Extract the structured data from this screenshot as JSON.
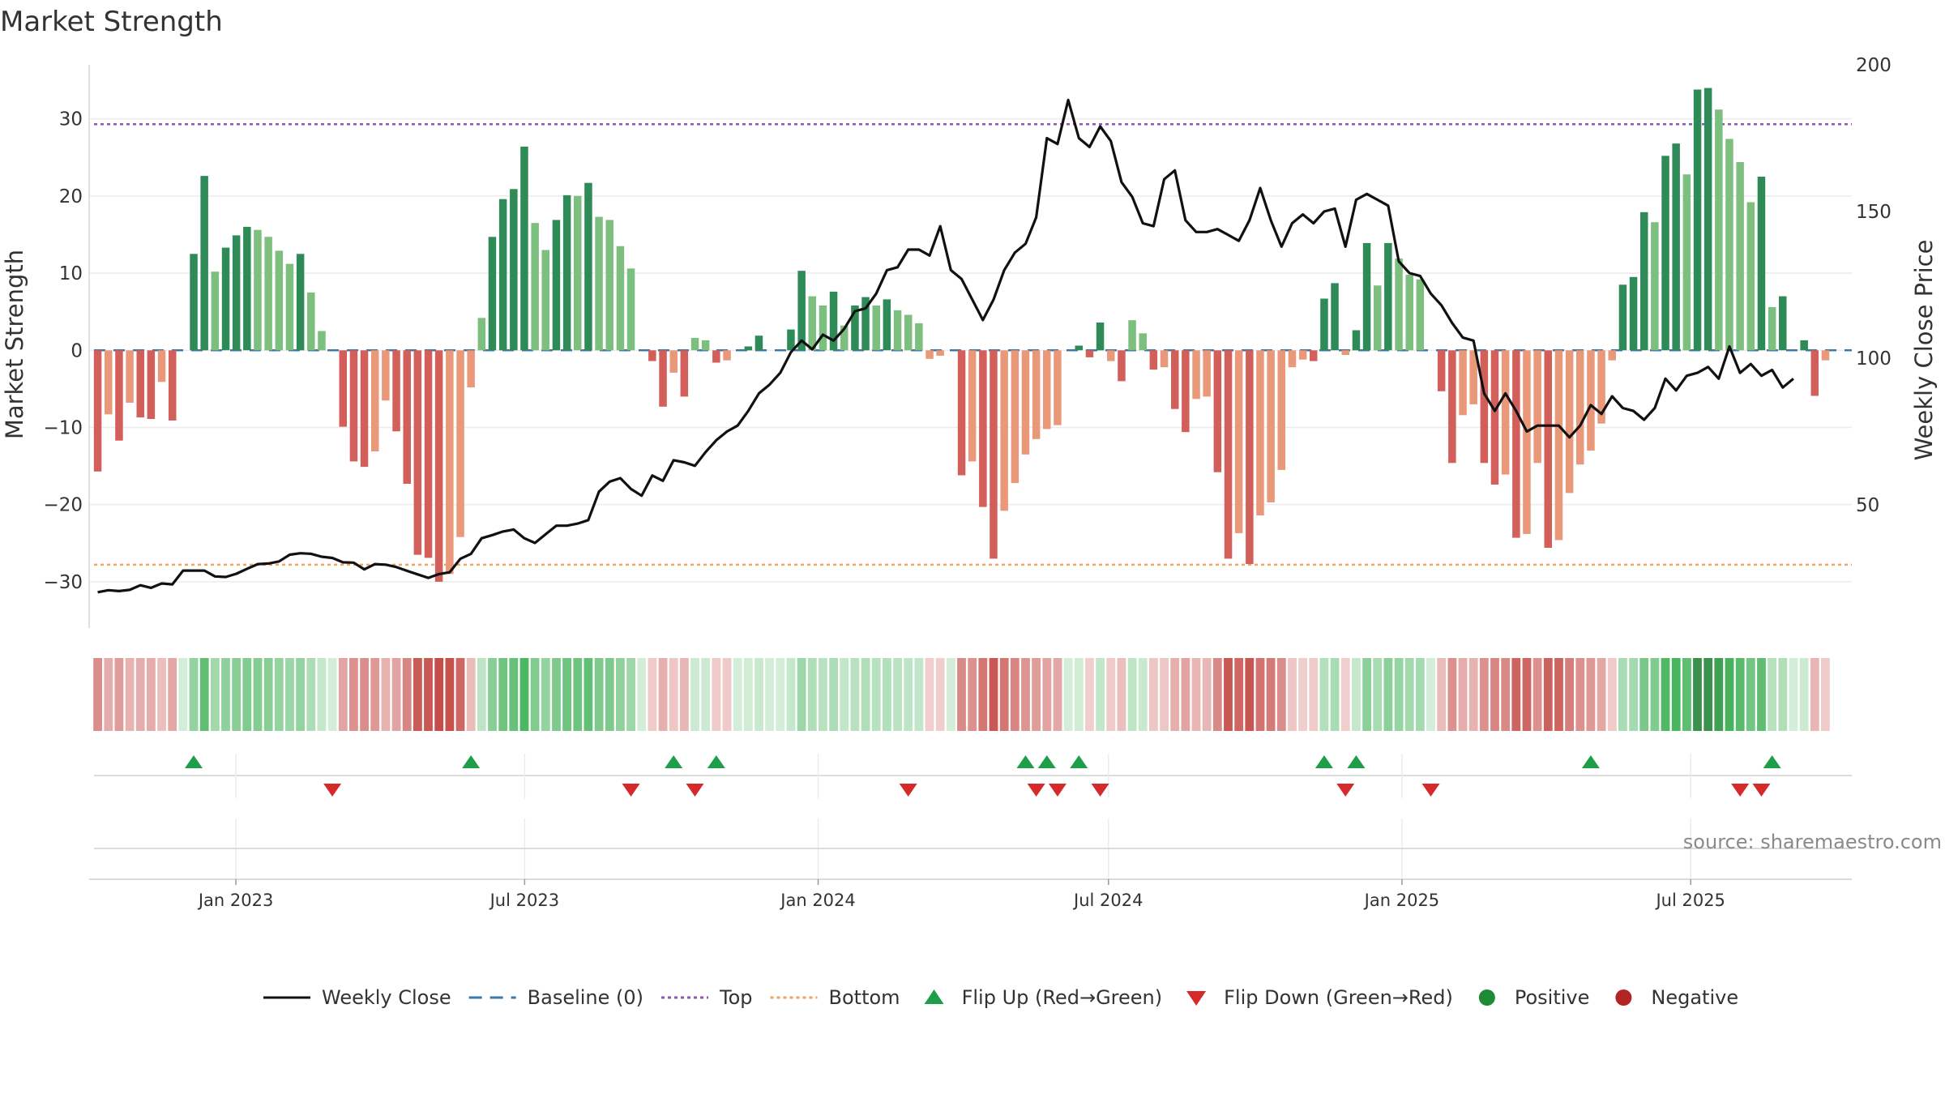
{
  "chart_data": {
    "type": "combo",
    "title": "Market Strength",
    "ylabel_left": "Market Strength",
    "ylabel_right": "Weekly Close Price",
    "ylim_left": [
      -36,
      37
    ],
    "yticks_left": [
      "30",
      "20",
      "10",
      "0",
      "−10",
      "−20",
      "−30"
    ],
    "yticks_left_values": [
      30,
      20,
      10,
      0,
      -10,
      -20,
      -30
    ],
    "ylim_right": [
      8,
      200
    ],
    "yticks_right": [
      "200",
      "150",
      "100",
      "50"
    ],
    "yticks_right_values": [
      200,
      150,
      100,
      50
    ],
    "x_start": "2022-10-01",
    "x_end": "2025-10-10",
    "xtick_labels": [
      "Jan 2023",
      "Jul 2023",
      "Jan 2024",
      "Jul 2024",
      "Jan 2025",
      "Jul 2025"
    ],
    "xtick_dates": [
      "2023-01-01",
      "2023-07-01",
      "2024-01-01",
      "2024-07-01",
      "2025-01-01",
      "2025-07-01"
    ],
    "top_line": 29.3,
    "bottom_line": -27.8,
    "baseline": 0,
    "strength_values": [
      -15.7,
      -8.3,
      -11.7,
      -6.8,
      -8.7,
      -8.9,
      -4.1,
      -9.1,
      0.0,
      12.5,
      22.6,
      10.2,
      13.3,
      14.9,
      16.0,
      15.6,
      14.7,
      12.9,
      11.2,
      12.5,
      7.5,
      2.5,
      0.0,
      -9.9,
      -14.4,
      -15.1,
      -13.1,
      -6.5,
      -10.5,
      -17.3,
      -26.5,
      -26.9,
      -30.0,
      -29.0,
      -24.2,
      -4.8,
      4.2,
      14.7,
      19.6,
      20.9,
      26.4,
      16.5,
      13.0,
      16.9,
      20.1,
      20.0,
      21.7,
      17.3,
      16.9,
      13.5,
      10.6,
      0.0,
      -1.4,
      -7.3,
      -2.9,
      -6.0,
      1.6,
      1.3,
      -1.6,
      -1.3,
      0.0,
      0.5,
      1.9,
      0.0,
      0.0,
      2.7,
      10.3,
      7.0,
      5.8,
      7.6,
      3.2,
      5.8,
      6.9,
      5.8,
      6.6,
      5.2,
      4.6,
      3.5,
      -1.1,
      -0.7,
      0.0,
      -16.2,
      -14.4,
      -20.3,
      -27.0,
      -20.8,
      -17.2,
      -13.5,
      -11.5,
      -10.2,
      -9.7,
      0.0,
      0.6,
      -0.9,
      3.6,
      -1.4,
      -4.0,
      3.9,
      2.2,
      -2.5,
      -2.2,
      -7.6,
      -10.6,
      -6.3,
      -6.0,
      -15.8,
      -27.0,
      -23.7,
      -27.7,
      -21.4,
      -19.7,
      -15.5,
      -2.2,
      -1.2,
      -1.4,
      6.7,
      8.7,
      -0.6,
      2.6,
      13.9,
      8.4,
      13.9,
      11.9,
      9.8,
      9.2,
      0.0,
      -5.3,
      -14.6,
      -8.4,
      -7.0,
      -14.6,
      -17.4,
      -16.1,
      -24.3,
      -23.8,
      -14.6,
      -25.6,
      -24.6,
      -18.5,
      -14.8,
      -13.0,
      -9.5,
      -1.3,
      8.5,
      9.5,
      17.9,
      16.6,
      25.2,
      26.8,
      22.8,
      33.8,
      34.0,
      31.2,
      27.4,
      24.4,
      19.2,
      22.5,
      5.6,
      7.0,
      0.0,
      1.3,
      -5.9,
      -1.3
    ],
    "close_values": [
      20.2,
      20.9,
      20.6,
      21.0,
      22.6,
      21.7,
      23.2,
      22.9,
      27.6,
      27.6,
      27.6,
      25.6,
      25.4,
      26.5,
      28.2,
      29.8,
      30.0,
      30.7,
      33.0,
      33.5,
      33.3,
      32.3,
      31.9,
      30.4,
      30.3,
      28.0,
      29.8,
      29.6,
      28.8,
      27.5,
      26.3,
      25.1,
      26.4,
      27.0,
      31.6,
      33.3,
      38.6,
      39.7,
      40.9,
      41.6,
      38.6,
      37.0,
      40.0,
      42.9,
      42.9,
      43.6,
      44.8,
      54.5,
      57.9,
      59.1,
      55.4,
      53.1,
      60.0,
      58.2,
      65.2,
      64.5,
      63.3,
      68.0,
      72.0,
      75.0,
      77.0,
      82.0,
      88.0,
      91.0,
      95.0,
      102.0,
      106.0,
      103.0,
      108.0,
      106.0,
      110.0,
      116.0,
      117.0,
      122.0,
      130.0,
      131.0,
      137.0,
      137.0,
      135.0,
      145.0,
      130.0,
      127.0,
      120.0,
      113.0,
      120.0,
      130.0,
      136.0,
      139.0,
      148.0,
      175.0,
      173.0,
      188.0,
      175.0,
      172.0,
      179.0,
      174.0,
      160.0,
      155.0,
      146.0,
      145.0,
      161.0,
      164.0,
      147.0,
      143.0,
      143.0,
      144.0,
      142.0,
      140.0,
      147.0,
      158.0,
      147.0,
      138.0,
      146.0,
      149.0,
      146.0,
      150.0,
      151.0,
      138.0,
      154.0,
      156.0,
      154.0,
      152.0,
      133.0,
      129.0,
      128.0,
      122.0,
      118.0,
      112.0,
      107.0,
      106.0,
      88.0,
      82.0,
      88.0,
      82.0,
      75.0,
      77.0,
      77.0,
      77.0,
      73.0,
      77.0,
      84.0,
      81.0,
      87.0,
      83.0,
      82.0,
      79.0,
      83.0,
      93.0,
      89.0,
      94.0,
      95.0,
      97.0,
      93.0,
      104.0,
      95.0,
      98.0,
      94.0,
      96.0,
      90.0,
      93.0
    ],
    "heat_strip": "per-week color intensity band mirroring market strength",
    "flip_up_weeks": [
      9,
      35,
      54,
      58,
      87,
      89,
      92,
      115,
      118,
      140,
      157
    ],
    "flip_down_weeks": [
      22,
      50,
      56,
      76,
      88,
      90,
      94,
      117,
      125,
      154,
      156
    ],
    "legend": [
      {
        "label": "Weekly Close",
        "kind": "line",
        "color": "#111111"
      },
      {
        "label": "Baseline (0)",
        "kind": "dash",
        "color": "#3c78a8"
      },
      {
        "label": "Top",
        "kind": "dot",
        "color": "#9055b3"
      },
      {
        "label": "Bottom",
        "kind": "dot",
        "color": "#f0a35c"
      },
      {
        "label": "Flip Up (Red→Green)",
        "kind": "tri-up",
        "color": "#1f9e4a"
      },
      {
        "label": "Flip Down (Green→Red)",
        "kind": "tri-down",
        "color": "#d62a2a"
      },
      {
        "label": "Positive",
        "kind": "circle",
        "color": "#1e8a35"
      },
      {
        "label": "Negative",
        "kind": "circle",
        "color": "#b22525"
      }
    ],
    "source": "source: sharemaestro.com"
  }
}
